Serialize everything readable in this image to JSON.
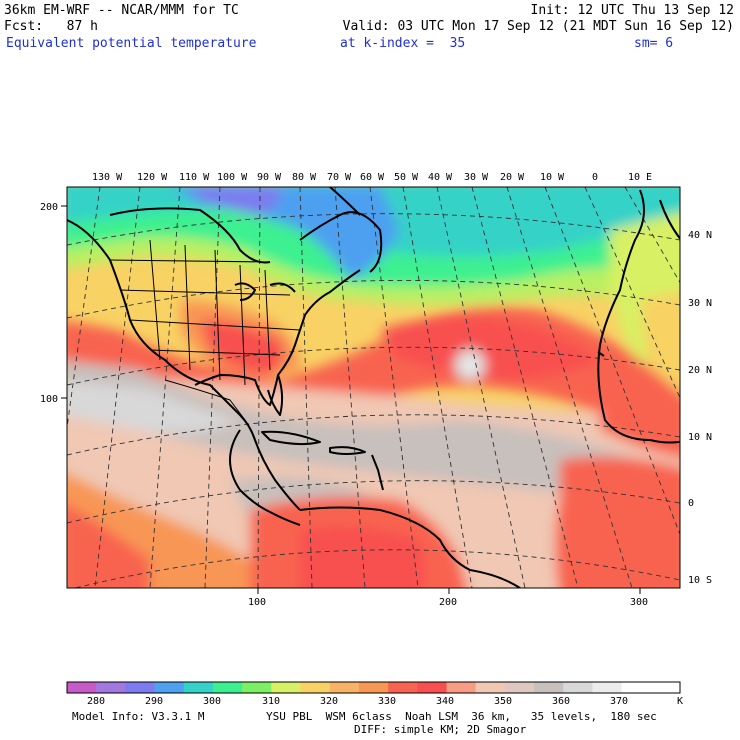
{
  "header": {
    "model_line": "36km EM-WRF -- NCAR/MMM for TC",
    "init_line": "Init: 12 UTC Thu 13 Sep 12",
    "fcst_line": "Fcst:   87 h",
    "valid_line": "Valid: 03 UTC Mon 17 Sep 12 (21 MDT Sun 16 Sep 12)",
    "field_name": "Equivalent potential temperature",
    "level_label": "at k-index =  35",
    "smooth_label": "sm= 6"
  },
  "map": {
    "lon_labels": [
      "130 W",
      "120 W",
      "110 W",
      "100 W",
      "90 W",
      "80 W",
      "70 W",
      "60 W",
      "50 W",
      "40 W",
      "30 W",
      "20 W",
      "10 W",
      "0",
      "10 E"
    ],
    "lat_labels": [
      "40 N",
      "30 N",
      "20 N",
      "10 N",
      "0",
      "10 S"
    ],
    "grid_y_labels": [
      "200",
      "100"
    ],
    "grid_x_labels": [
      "100",
      "200",
      "300"
    ]
  },
  "colorbar": {
    "labels": [
      "280",
      "290",
      "300",
      "310",
      "320",
      "330",
      "340",
      "350",
      "360",
      "370"
    ],
    "unit": "K",
    "colors": [
      "#c85ac8",
      "#a278e0",
      "#7c7cf0",
      "#4ea0f0",
      "#34d2c8",
      "#3cf090",
      "#7cf064",
      "#d8f064",
      "#f8d264",
      "#f8b464",
      "#f89654",
      "#f86450",
      "#f85050",
      "#f89c84",
      "#f0c8b4",
      "#e0c8c0",
      "#c8c0bc",
      "#d8d8d8",
      "#ececec",
      "#ffffff",
      "#ffffff"
    ]
  },
  "footer": {
    "model_info": "Model Info: V3.3.1 M",
    "physics_line": "YSU PBL  WSM 6class  Noah LSM  36 km,   35 levels,  180 sec",
    "diff_line": "DIFF: simple KM; 2D Smagor"
  }
}
